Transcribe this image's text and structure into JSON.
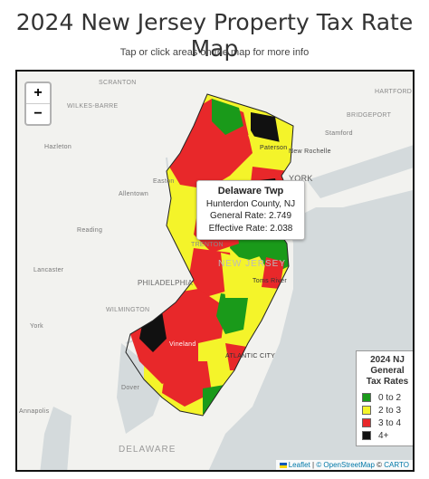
{
  "page": {
    "title": "2024 New Jersey Property Tax Rate Map",
    "subtitle": "Tap or click areas on the map for more info"
  },
  "map": {
    "zoom_in": "+",
    "zoom_out": "−",
    "place_labels": {
      "scranton": "SCRANTON",
      "wilkes_barre": "WILKES-BARRE",
      "hazleton": "Hazleton",
      "allentown": "Allentown",
      "easton": "Easton",
      "reading": "Reading",
      "lancaster": "Lancaster",
      "york": "York",
      "philadelphia": "PHILADELPHIA",
      "wilmington": "WILMINGTON",
      "trenton": "TRENTON",
      "new_jersey": "NEW JERSEY",
      "hartford": "HARTFORD",
      "bridgeport": "BRIDGEPORT",
      "stamford": "Stamford",
      "new_rochelle": "New Rochelle",
      "paterson": "Paterson",
      "york_ny": "YORK",
      "dover": "Dover",
      "atlantic_city": "ATLANTIC CITY",
      "vineland": "Vineland",
      "toms_river": "Toms River",
      "annapolis": "Annapolis",
      "delaware": "DELAWARE"
    },
    "popup": {
      "name": "Delaware Twp",
      "county": "Hunterdon County, NJ",
      "general_rate": "General Rate: 2.749",
      "effective_rate": "Effective Rate: 2.038"
    },
    "legend": {
      "title_line1": "2024 NJ",
      "title_line2": "General",
      "title_line3": "Tax Rates",
      "items": [
        {
          "label": "0 to 2",
          "color": "#1a9a1a"
        },
        {
          "label": "2 to 3",
          "color": "#f4f42a"
        },
        {
          "label": "3 to 4",
          "color": "#e8282a"
        },
        {
          "label": "4+",
          "color": "#111111"
        }
      ]
    },
    "attribution": {
      "leaflet": "Leaflet",
      "sep1": "|",
      "osm": "© OpenStreetMap",
      "sep2": "©",
      "carto": "CARTO"
    }
  }
}
